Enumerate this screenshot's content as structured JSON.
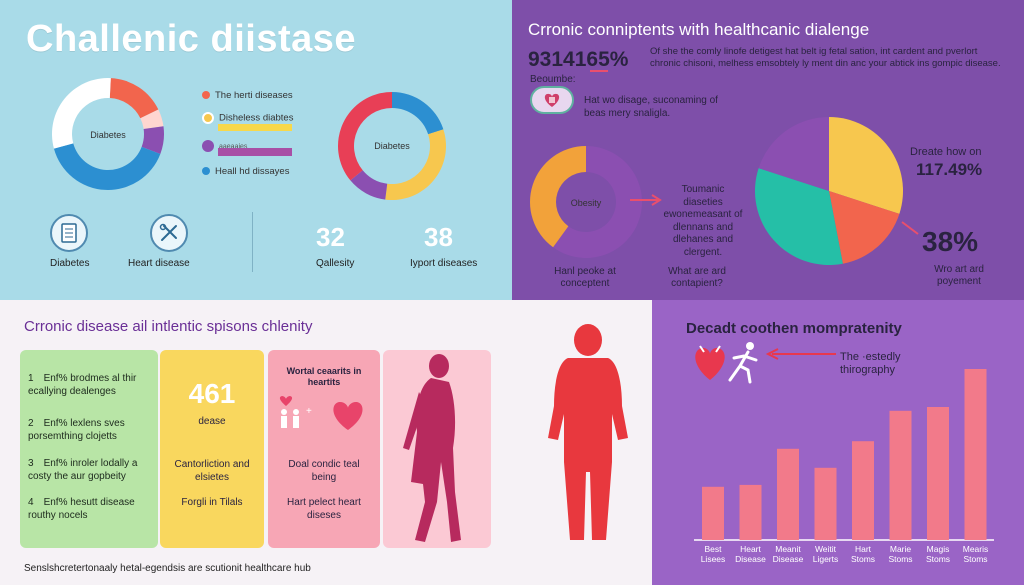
{
  "colors": {
    "panel_top_left": "#a9dbe8",
    "panel_top_right": "#7e4fa9",
    "panel_bottom_right": "#9a64c6",
    "orange": "#f2654d",
    "yellow": "#f7c74e",
    "purple": "#8b4fb1",
    "blue": "#2c8fd1",
    "teal": "#25bfa7",
    "red": "#e83f56",
    "bar_pink": "#f27a8a"
  },
  "header": {
    "title": "Challenic diistase"
  },
  "legend": {
    "items": [
      {
        "label": "The herti diseases",
        "color": "#f2654d"
      },
      {
        "label": "Disheless diabtes",
        "color": "#f7c74e"
      },
      {
        "label": "aaeaaies",
        "color": "#8b4fb1"
      },
      {
        "label": "Heall hd dissayes",
        "color": "#2c8fd1"
      }
    ]
  },
  "stats": {
    "icon_diabetes_label": "Diabetes",
    "icon_heart_label": "Heart disease",
    "num1": "32",
    "num1_label": "Qallesity",
    "num2": "38",
    "num2_label": "Iyport diseases"
  },
  "top_right": {
    "title": "Crronic conniptents with healthcanic dialenge",
    "big_number": "9314165%",
    "paragraph": "Of she the comly linofe detigest hat belt ig fetal sation, int cardent and pverlort chronic chisoni, melhess emsobtely ly ment din anc your abtick ins gompic disease.",
    "sub_label": "Beoumbe:",
    "heart_text": "Hat wo disage, suconaming of beas mery snaligla.",
    "arrow_text": "Toumanic diaseties ewonemeasant of dlennans and dlehanes and clergent.",
    "question_text": "What are ard contapient?",
    "left_caption": "Hanl peoke at conceptent",
    "right_top": "Dreate how on",
    "right_pct": "117.49%",
    "right_big": "38%",
    "right_caption": "Wro art ard poyement"
  },
  "bottom_left": {
    "title": "Crronic disease ail intlentic spisons chlenity",
    "list": [
      {
        "n": "1",
        "text": "Enf% brodmes al thir ecallying dealenges"
      },
      {
        "n": "2",
        "text": "Enf% lexlens sves porsemthing clojetts"
      },
      {
        "n": "3",
        "text": "Enf% inroler lodally a costy the aur gopbeity"
      },
      {
        "n": "4",
        "text": "Enf% hesutt disease routhy nocels"
      }
    ],
    "yellow_num": "461",
    "yellow_sub": "dease",
    "yellow_line1": "Cantorliction and elsietes",
    "yellow_line2": "Forgli in Tilals",
    "pink_title": "Wortal ceaarits in heartits",
    "pink_line1": "Doal condic teal being",
    "pink_line2": "Hart pelect heart diseses",
    "footer": "Senslshcretertonaaly hetal-egendsis are scutionit healthcare hub"
  },
  "bottom_right": {
    "title": "Decadt coothen mompratenity",
    "note": "The ·estedly thirography"
  },
  "chart_data": [
    {
      "type": "pie",
      "labels": [
        "Diabetes"
      ],
      "center_label": "Diabetes",
      "values": [
        {
          "label": "The herti diseases",
          "value": 17
        },
        {
          "label": "Disheless diabtes",
          "value": 5
        },
        {
          "label": "aaeaaies",
          "value": 8
        },
        {
          "label": "Heall hd dissayes",
          "value": 40
        },
        {
          "label": "",
          "value": 30
        }
      ]
    },
    {
      "type": "pie",
      "center_label": "Diabetes",
      "values": [
        {
          "label": "",
          "value": 20
        },
        {
          "label": "",
          "value": 32
        },
        {
          "label": "",
          "value": 12
        },
        {
          "label": "",
          "value": 36
        }
      ]
    },
    {
      "type": "pie",
      "center_label": "Obesity",
      "values": [
        {
          "label": "",
          "value": 60
        },
        {
          "label": "",
          "value": 40
        }
      ]
    },
    {
      "type": "pie",
      "values": [
        {
          "label": "",
          "value": 30
        },
        {
          "label": "",
          "value": 17
        },
        {
          "label": "",
          "value": 33
        },
        {
          "label": "",
          "value": 20
        }
      ]
    },
    {
      "type": "bar",
      "categories": [
        "Best Lisees",
        "Heart Disease",
        "Meanit Disease",
        "Weitit Ligerts",
        "Hart Stoms",
        "Marie Stoms",
        "Magis Stoms",
        "Mearis Stoms"
      ],
      "values": [
        28,
        29,
        48,
        38,
        52,
        68,
        70,
        90
      ],
      "ylim": [
        0,
        100
      ]
    }
  ]
}
